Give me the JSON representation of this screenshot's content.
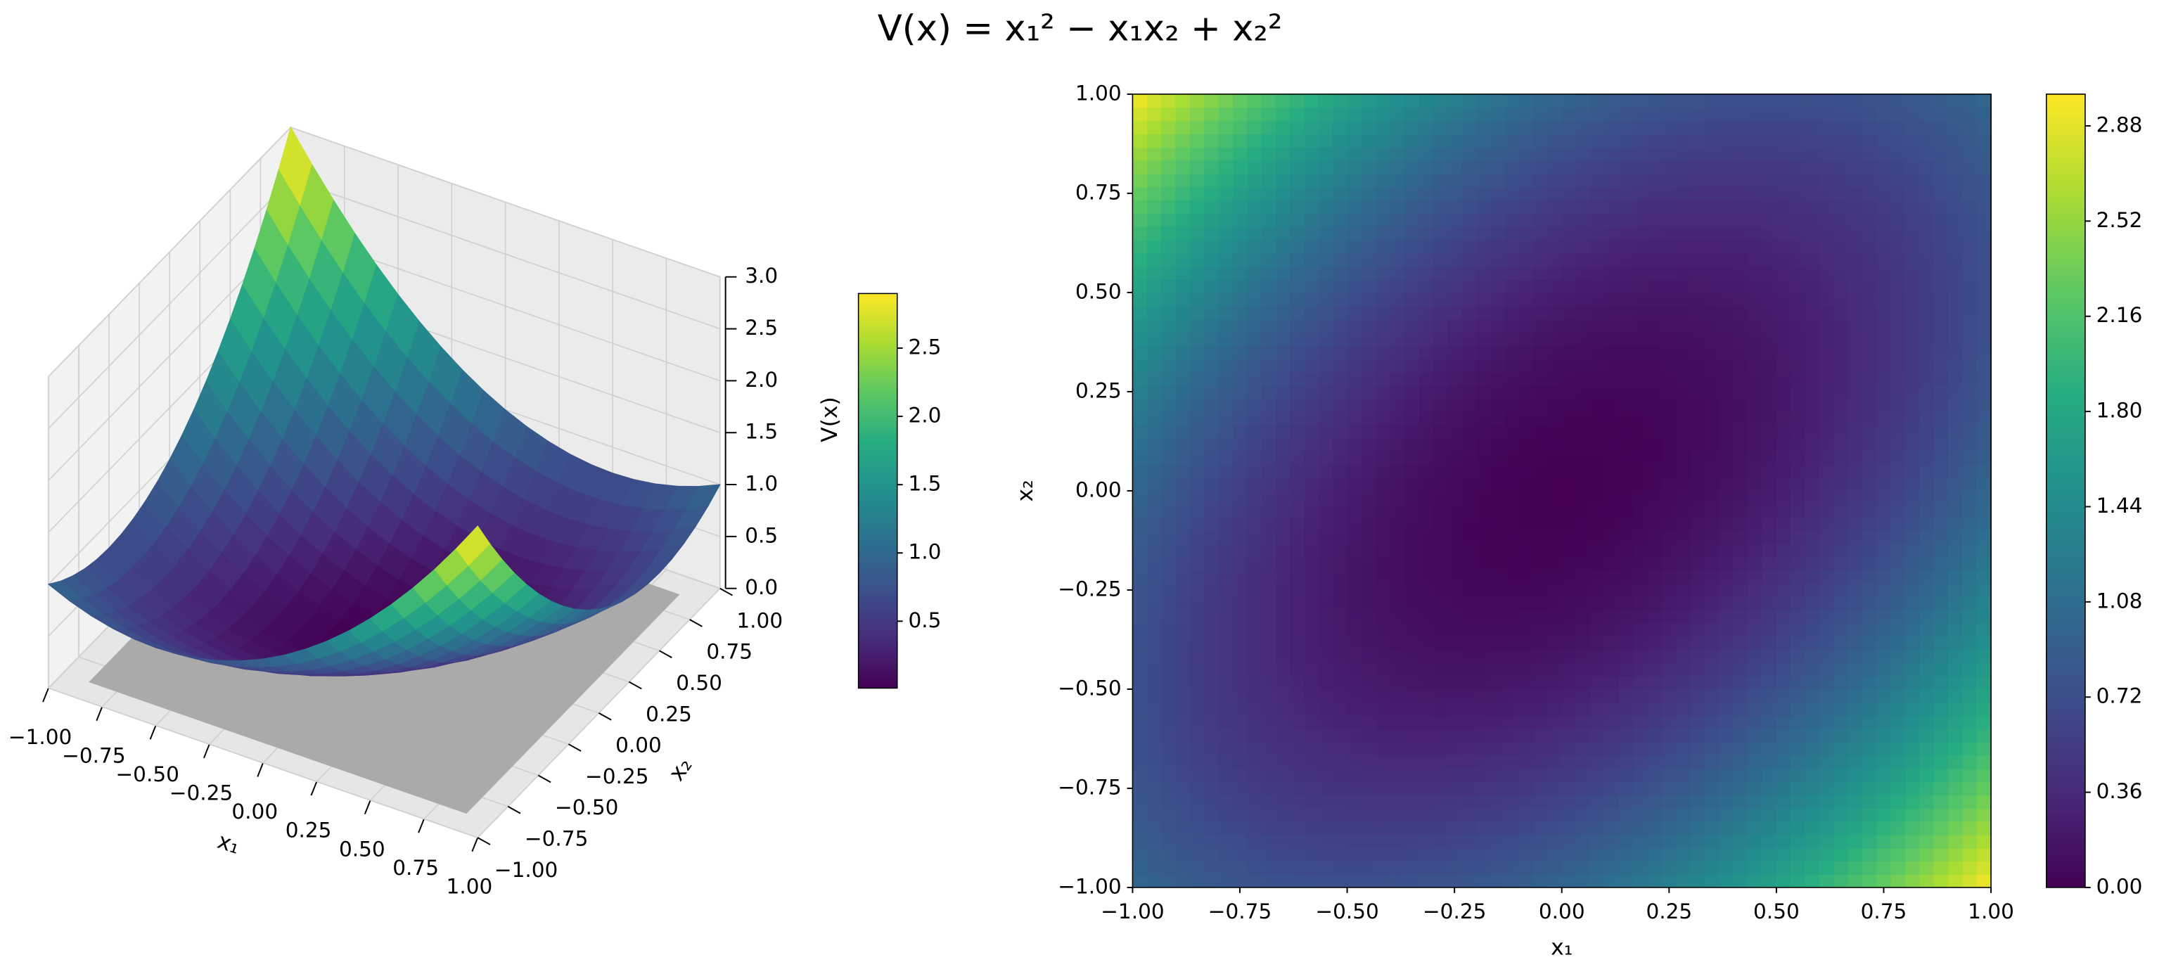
{
  "title": "V(x) = x₁² − x₁x₂ + x₂²",
  "chart_data": [
    {
      "type": "surface",
      "x": [
        -1,
        -0.9,
        -0.8,
        -0.7,
        -0.6,
        -0.5,
        -0.4,
        -0.3,
        -0.2,
        -0.1,
        0,
        0.1,
        0.2,
        0.3,
        0.4,
        0.5,
        0.6,
        0.7,
        0.8,
        0.9,
        1
      ],
      "y": [
        -1,
        -0.9,
        -0.8,
        -0.7,
        -0.6,
        -0.5,
        -0.4,
        -0.3,
        -0.2,
        -0.1,
        0,
        0.1,
        0.2,
        0.3,
        0.4,
        0.5,
        0.6,
        0.7,
        0.8,
        0.9,
        1
      ],
      "z": [
        [
          1,
          0.91,
          0.84,
          0.79,
          0.76,
          0.75,
          0.76,
          0.79,
          0.84,
          0.91,
          1,
          1.11,
          1.24,
          1.39,
          1.56,
          1.75,
          1.96,
          2.19,
          2.44,
          2.71,
          3
        ],
        [
          0.91,
          0.81,
          0.73,
          0.67,
          0.63,
          0.61,
          0.61,
          0.63,
          0.67,
          0.73,
          0.81,
          0.91,
          1.03,
          1.17,
          1.33,
          1.51,
          1.71,
          1.93,
          2.17,
          2.43,
          2.71
        ],
        [
          0.84,
          0.73,
          0.64,
          0.57,
          0.52,
          0.49,
          0.48,
          0.49,
          0.52,
          0.57,
          0.64,
          0.73,
          0.84,
          0.97,
          1.12,
          1.29,
          1.48,
          1.69,
          1.92,
          2.17,
          2.44
        ],
        [
          0.79,
          0.67,
          0.57,
          0.49,
          0.43,
          0.39,
          0.37,
          0.37,
          0.39,
          0.43,
          0.49,
          0.57,
          0.67,
          0.79,
          0.93,
          1.09,
          1.27,
          1.47,
          1.69,
          1.93,
          2.19
        ],
        [
          0.76,
          0.63,
          0.52,
          0.43,
          0.36,
          0.31,
          0.28,
          0.27,
          0.28,
          0.31,
          0.36,
          0.43,
          0.52,
          0.63,
          0.76,
          0.91,
          1.08,
          1.27,
          1.48,
          1.71,
          1.96
        ],
        [
          0.75,
          0.61,
          0.49,
          0.39,
          0.31,
          0.25,
          0.21,
          0.19,
          0.19,
          0.21,
          0.25,
          0.31,
          0.39,
          0.49,
          0.61,
          0.75,
          0.91,
          1.09,
          1.29,
          1.51,
          1.75
        ],
        [
          0.76,
          0.61,
          0.48,
          0.37,
          0.28,
          0.21,
          0.16,
          0.13,
          0.12,
          0.13,
          0.16,
          0.21,
          0.28,
          0.37,
          0.48,
          0.61,
          0.76,
          0.93,
          1.12,
          1.33,
          1.56
        ],
        [
          0.79,
          0.63,
          0.49,
          0.37,
          0.27,
          0.19,
          0.13,
          0.09,
          0.07,
          0.07,
          0.09,
          0.13,
          0.19,
          0.27,
          0.37,
          0.49,
          0.63,
          0.79,
          0.97,
          1.17,
          1.39
        ],
        [
          0.84,
          0.67,
          0.52,
          0.39,
          0.28,
          0.19,
          0.12,
          0.07,
          0.04,
          0.03,
          0.04,
          0.07,
          0.12,
          0.19,
          0.28,
          0.39,
          0.52,
          0.67,
          0.84,
          1.03,
          1.24
        ],
        [
          0.91,
          0.73,
          0.57,
          0.43,
          0.31,
          0.21,
          0.13,
          0.07,
          0.03,
          0.01,
          0.01,
          0.03,
          0.07,
          0.13,
          0.21,
          0.31,
          0.43,
          0.57,
          0.73,
          0.91,
          1.11
        ],
        [
          1,
          0.81,
          0.64,
          0.49,
          0.36,
          0.25,
          0.16,
          0.09,
          0.04,
          0.01,
          0,
          0.01,
          0.04,
          0.09,
          0.16,
          0.25,
          0.36,
          0.49,
          0.64,
          0.81,
          1
        ],
        [
          1.11,
          0.91,
          0.73,
          0.57,
          0.43,
          0.31,
          0.21,
          0.13,
          0.07,
          0.03,
          0.01,
          0.01,
          0.03,
          0.07,
          0.13,
          0.21,
          0.31,
          0.43,
          0.57,
          0.73,
          0.91
        ],
        [
          1.24,
          1.03,
          0.84,
          0.67,
          0.52,
          0.39,
          0.28,
          0.19,
          0.12,
          0.07,
          0.04,
          0.03,
          0.04,
          0.07,
          0.12,
          0.19,
          0.28,
          0.39,
          0.52,
          0.67,
          0.84
        ],
        [
          1.39,
          1.17,
          0.97,
          0.79,
          0.63,
          0.49,
          0.37,
          0.27,
          0.19,
          0.13,
          0.09,
          0.07,
          0.07,
          0.09,
          0.13,
          0.19,
          0.27,
          0.37,
          0.49,
          0.63,
          0.79
        ],
        [
          1.56,
          1.33,
          1.12,
          0.93,
          0.76,
          0.61,
          0.48,
          0.37,
          0.28,
          0.21,
          0.16,
          0.13,
          0.12,
          0.13,
          0.16,
          0.21,
          0.28,
          0.37,
          0.48,
          0.61,
          0.76
        ],
        [
          1.75,
          1.51,
          1.29,
          1.09,
          0.91,
          0.75,
          0.61,
          0.49,
          0.39,
          0.31,
          0.25,
          0.21,
          0.19,
          0.19,
          0.21,
          0.25,
          0.31,
          0.39,
          0.49,
          0.61,
          0.75
        ],
        [
          1.96,
          1.71,
          1.48,
          1.27,
          1.08,
          0.91,
          0.76,
          0.63,
          0.52,
          0.43,
          0.36,
          0.31,
          0.28,
          0.27,
          0.28,
          0.31,
          0.36,
          0.43,
          0.52,
          0.63,
          0.76
        ],
        [
          2.19,
          1.93,
          1.69,
          1.47,
          1.27,
          1.09,
          0.93,
          0.79,
          0.67,
          0.57,
          0.49,
          0.43,
          0.39,
          0.37,
          0.37,
          0.39,
          0.43,
          0.49,
          0.57,
          0.67,
          0.79
        ],
        [
          2.44,
          2.17,
          1.92,
          1.69,
          1.48,
          1.29,
          1.12,
          0.97,
          0.84,
          0.73,
          0.64,
          0.57,
          0.52,
          0.49,
          0.48,
          0.49,
          0.52,
          0.57,
          0.64,
          0.73,
          0.84
        ],
        [
          2.71,
          2.43,
          2.17,
          1.93,
          1.71,
          1.51,
          1.33,
          1.17,
          1.03,
          0.91,
          0.81,
          0.73,
          0.67,
          0.63,
          0.61,
          0.61,
          0.63,
          0.67,
          0.73,
          0.81,
          0.91
        ],
        [
          3,
          2.71,
          2.44,
          2.19,
          1.96,
          1.75,
          1.56,
          1.39,
          1.24,
          1.11,
          1,
          0.91,
          0.84,
          0.79,
          0.76,
          0.75,
          0.76,
          0.79,
          0.84,
          0.91,
          1
        ]
      ],
      "xlim": [
        -1,
        1
      ],
      "ylim": [
        -1,
        1
      ],
      "zlim": [
        0,
        3
      ],
      "xticks": [
        {
          "value": -1,
          "label": "−1.00"
        },
        {
          "value": -0.75,
          "label": "−0.75"
        },
        {
          "value": -0.5,
          "label": "−0.50"
        },
        {
          "value": -0.25,
          "label": "−0.25"
        },
        {
          "value": 0,
          "label": "0.00"
        },
        0.25,
        {
          "value": 0.5,
          "label": "0.50"
        },
        0.75,
        {
          "value": 1,
          "label": "1.00"
        }
      ],
      "yticks": [
        {
          "value": -1,
          "label": "−1.00"
        },
        {
          "value": -0.75,
          "label": "−0.75"
        },
        {
          "value": -0.5,
          "label": "−0.50"
        },
        {
          "value": -0.25,
          "label": "−0.25"
        },
        {
          "value": 0,
          "label": "0.00"
        },
        0.25,
        {
          "value": 0.5,
          "label": "0.50"
        },
        0.75,
        {
          "value": 1,
          "label": "1.00"
        }
      ],
      "zticks": [
        {
          "value": 0,
          "label": "0.0"
        },
        0.5,
        {
          "value": 1,
          "label": "1.0"
        },
        1.5,
        {
          "value": 2,
          "label": "2.0"
        },
        2.5,
        {
          "value": 3,
          "label": "3.0"
        }
      ],
      "xlabel": "x₁",
      "ylabel": "x₂",
      "zlabel": "V(x)",
      "colormap": "viridis",
      "colorbar": {
        "lim": [
          0.01,
          2.9
        ],
        "ticks": [
          0.5,
          {
            "value": 1,
            "label": "1.0"
          },
          1.5,
          {
            "value": 2,
            "label": "2.0"
          },
          2.5
        ]
      }
    },
    {
      "type": "contourf",
      "x": [
        -1,
        -0.9,
        -0.8,
        -0.7,
        -0.6,
        -0.5,
        -0.4,
        -0.3,
        -0.2,
        -0.1,
        0,
        0.1,
        0.2,
        0.3,
        0.4,
        0.5,
        0.6,
        0.7,
        0.8,
        0.9,
        1
      ],
      "y": [
        -1,
        -0.9,
        -0.8,
        -0.7,
        -0.6,
        -0.5,
        -0.4,
        -0.3,
        -0.2,
        -0.1,
        0,
        0.1,
        0.2,
        0.3,
        0.4,
        0.5,
        0.6,
        0.7,
        0.8,
        0.9,
        1
      ],
      "z": [
        [
          1,
          0.91,
          0.84,
          0.79,
          0.76,
          0.75,
          0.76,
          0.79,
          0.84,
          0.91,
          1,
          1.11,
          1.24,
          1.39,
          1.56,
          1.75,
          1.96,
          2.19,
          2.44,
          2.71,
          3
        ],
        [
          0.91,
          0.81,
          0.73,
          0.67,
          0.63,
          0.61,
          0.61,
          0.63,
          0.67,
          0.73,
          0.81,
          0.91,
          1.03,
          1.17,
          1.33,
          1.51,
          1.71,
          1.93,
          2.17,
          2.43,
          2.71
        ],
        [
          0.84,
          0.73,
          0.64,
          0.57,
          0.52,
          0.49,
          0.48,
          0.49,
          0.52,
          0.57,
          0.64,
          0.73,
          0.84,
          0.97,
          1.12,
          1.29,
          1.48,
          1.69,
          1.92,
          2.17,
          2.44
        ],
        [
          0.79,
          0.67,
          0.57,
          0.49,
          0.43,
          0.39,
          0.37,
          0.37,
          0.39,
          0.43,
          0.49,
          0.57,
          0.67,
          0.79,
          0.93,
          1.09,
          1.27,
          1.47,
          1.69,
          1.93,
          2.19
        ],
        [
          0.76,
          0.63,
          0.52,
          0.43,
          0.36,
          0.31,
          0.28,
          0.27,
          0.28,
          0.31,
          0.36,
          0.43,
          0.52,
          0.63,
          0.76,
          0.91,
          1.08,
          1.27,
          1.48,
          1.71,
          1.96
        ],
        [
          0.75,
          0.61,
          0.49,
          0.39,
          0.31,
          0.25,
          0.21,
          0.19,
          0.19,
          0.21,
          0.25,
          0.31,
          0.39,
          0.49,
          0.61,
          0.75,
          0.91,
          1.09,
          1.29,
          1.51,
          1.75
        ],
        [
          0.76,
          0.61,
          0.48,
          0.37,
          0.28,
          0.21,
          0.16,
          0.13,
          0.12,
          0.13,
          0.16,
          0.21,
          0.28,
          0.37,
          0.48,
          0.61,
          0.76,
          0.93,
          1.12,
          1.33,
          1.56
        ],
        [
          0.79,
          0.63,
          0.49,
          0.37,
          0.27,
          0.19,
          0.13,
          0.09,
          0.07,
          0.07,
          0.09,
          0.13,
          0.19,
          0.27,
          0.37,
          0.49,
          0.63,
          0.79,
          0.97,
          1.17,
          1.39
        ],
        [
          0.84,
          0.67,
          0.52,
          0.39,
          0.28,
          0.19,
          0.12,
          0.07,
          0.04,
          0.03,
          0.04,
          0.07,
          0.12,
          0.19,
          0.28,
          0.39,
          0.52,
          0.67,
          0.84,
          1.03,
          1.24
        ],
        [
          0.91,
          0.73,
          0.57,
          0.43,
          0.31,
          0.21,
          0.13,
          0.07,
          0.03,
          0.01,
          0.01,
          0.03,
          0.07,
          0.13,
          0.21,
          0.31,
          0.43,
          0.57,
          0.73,
          0.91,
          1.11
        ],
        [
          1,
          0.81,
          0.64,
          0.49,
          0.36,
          0.25,
          0.16,
          0.09,
          0.04,
          0.01,
          0,
          0.01,
          0.04,
          0.09,
          0.16,
          0.25,
          0.36,
          0.49,
          0.64,
          0.81,
          1
        ],
        [
          1.11,
          0.91,
          0.73,
          0.57,
          0.43,
          0.31,
          0.21,
          0.13,
          0.07,
          0.03,
          0.01,
          0.01,
          0.03,
          0.07,
          0.13,
          0.21,
          0.31,
          0.43,
          0.57,
          0.73,
          0.91
        ],
        [
          1.24,
          1.03,
          0.84,
          0.67,
          0.52,
          0.39,
          0.28,
          0.19,
          0.12,
          0.07,
          0.04,
          0.03,
          0.04,
          0.07,
          0.12,
          0.19,
          0.28,
          0.39,
          0.52,
          0.67,
          0.84
        ],
        [
          1.39,
          1.17,
          0.97,
          0.79,
          0.63,
          0.49,
          0.37,
          0.27,
          0.19,
          0.13,
          0.09,
          0.07,
          0.07,
          0.09,
          0.13,
          0.19,
          0.27,
          0.37,
          0.49,
          0.63,
          0.79
        ],
        [
          1.56,
          1.33,
          1.12,
          0.93,
          0.76,
          0.61,
          0.48,
          0.37,
          0.28,
          0.21,
          0.16,
          0.13,
          0.12,
          0.13,
          0.16,
          0.21,
          0.28,
          0.37,
          0.48,
          0.61,
          0.76
        ],
        [
          1.75,
          1.51,
          1.29,
          1.09,
          0.91,
          0.75,
          0.61,
          0.49,
          0.39,
          0.31,
          0.25,
          0.21,
          0.19,
          0.19,
          0.21,
          0.25,
          0.31,
          0.39,
          0.49,
          0.61,
          0.75
        ],
        [
          1.96,
          1.71,
          1.48,
          1.27,
          1.08,
          0.91,
          0.76,
          0.63,
          0.52,
          0.43,
          0.36,
          0.31,
          0.28,
          0.27,
          0.28,
          0.31,
          0.36,
          0.43,
          0.52,
          0.63,
          0.76
        ],
        [
          2.19,
          1.93,
          1.69,
          1.47,
          1.27,
          1.09,
          0.93,
          0.79,
          0.67,
          0.57,
          0.49,
          0.43,
          0.39,
          0.37,
          0.37,
          0.39,
          0.43,
          0.49,
          0.57,
          0.67,
          0.79
        ],
        [
          2.44,
          2.17,
          1.92,
          1.69,
          1.48,
          1.29,
          1.12,
          0.97,
          0.84,
          0.73,
          0.64,
          0.57,
          0.52,
          0.49,
          0.48,
          0.49,
          0.52,
          0.57,
          0.64,
          0.73,
          0.84
        ],
        [
          2.71,
          2.43,
          2.17,
          1.93,
          1.71,
          1.51,
          1.33,
          1.17,
          1.03,
          0.91,
          0.81,
          0.73,
          0.67,
          0.63,
          0.61,
          0.61,
          0.63,
          0.67,
          0.73,
          0.81,
          0.91
        ],
        [
          3,
          2.71,
          2.44,
          2.19,
          1.96,
          1.75,
          1.56,
          1.39,
          1.24,
          1.11,
          1,
          0.91,
          0.84,
          0.79,
          0.76,
          0.75,
          0.76,
          0.79,
          0.84,
          0.91,
          1
        ]
      ],
      "xlim": [
        -1,
        1
      ],
      "ylim": [
        -1,
        1
      ],
      "xticks": [
        {
          "value": -1,
          "label": "−1.00"
        },
        {
          "value": -0.75,
          "label": "−0.75"
        },
        {
          "value": -0.5,
          "label": "−0.50"
        },
        {
          "value": -0.25,
          "label": "−0.25"
        },
        {
          "value": 0,
          "label": "0.00"
        },
        0.25,
        {
          "value": 0.5,
          "label": "0.50"
        },
        0.75,
        {
          "value": 1,
          "label": "1.00"
        }
      ],
      "yticks": [
        {
          "value": -1,
          "label": "−1.00"
        },
        {
          "value": -0.75,
          "label": "−0.75"
        },
        {
          "value": -0.5,
          "label": "−0.50"
        },
        {
          "value": -0.25,
          "label": "−0.25"
        },
        {
          "value": 0,
          "label": "0.00"
        },
        0.25,
        {
          "value": 0.5,
          "label": "0.50"
        },
        0.75,
        {
          "value": 1,
          "label": "1.00"
        }
      ],
      "xlabel": "x₁",
      "ylabel": "x₂",
      "colormap": "viridis",
      "colorbar": {
        "lim": [
          0,
          3
        ],
        "ticks": [
          {
            "value": 0,
            "label": "0.00"
          },
          0.36,
          0.72,
          1.08,
          1.44,
          {
            "value": 1.8,
            "label": "1.80"
          },
          2.16,
          2.52,
          2.88
        ]
      }
    }
  ]
}
